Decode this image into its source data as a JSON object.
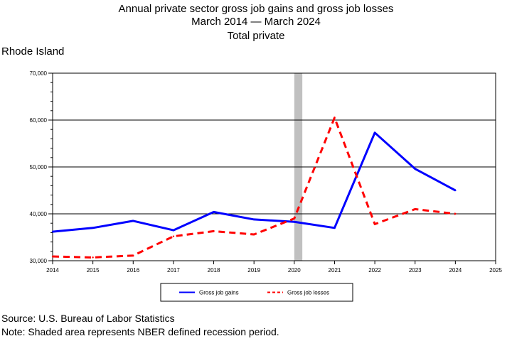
{
  "title_lines": [
    "Annual private sector gross job gains and gross job losses",
    "March 2014 — March 2024",
    "Total private"
  ],
  "region": "Rhode Island",
  "footer": {
    "source": "Source: U.S. Bureau of Labor Statistics",
    "note": "Note: Shaded area represents NBER defined recession period."
  },
  "chart_data": {
    "type": "line",
    "x": [
      2014,
      2015,
      2016,
      2017,
      2018,
      2019,
      2020,
      2021,
      2022,
      2023,
      2024
    ],
    "x_ticks": [
      "2014",
      "2015",
      "2016",
      "2017",
      "2018",
      "2019",
      "2020",
      "2021",
      "2022",
      "2023",
      "2024",
      "2025"
    ],
    "xlim": [
      2014,
      2025
    ],
    "ylim": [
      30000,
      70000
    ],
    "y_ticks": [
      "30,000",
      "40,000",
      "50,000",
      "60,000",
      "70,000"
    ],
    "y_tick_values": [
      30000,
      40000,
      50000,
      60000,
      70000
    ],
    "grid": "horizontal",
    "legend_position": "bottom",
    "recession_band": [
      2020,
      2020.2
    ],
    "series": [
      {
        "name": "Gross job gains",
        "color": "#0000ff",
        "style": "solid",
        "values": [
          36200,
          37000,
          38500,
          36500,
          40400,
          38800,
          38300,
          37000,
          57300,
          49600,
          45000
        ]
      },
      {
        "name": "Gross job losses",
        "color": "#ff0000",
        "style": "dashed",
        "values": [
          30900,
          30700,
          31100,
          35200,
          36300,
          35600,
          39000,
          60500,
          37800,
          41000,
          40000
        ]
      }
    ]
  }
}
